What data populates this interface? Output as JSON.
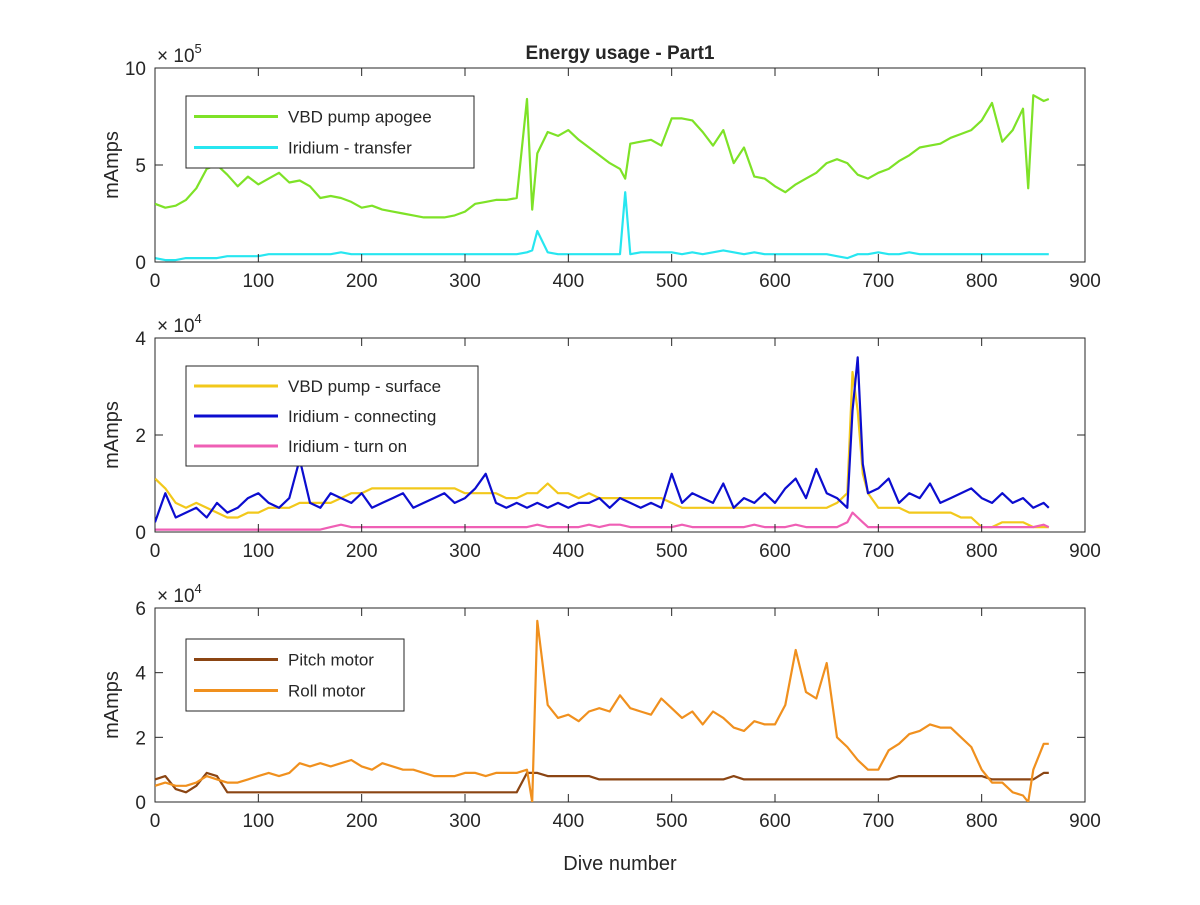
{
  "figure": {
    "title": "Energy usage - Part1",
    "xlabel": "Dive number"
  },
  "chart_data": [
    {
      "type": "line",
      "title": "Energy usage - Part1",
      "xlabel": "",
      "ylabel": "mAmps",
      "exponent_base": "× 10",
      "exponent_power": "5",
      "xlim": [
        0,
        900
      ],
      "ylim": [
        0,
        10
      ],
      "xticks": [
        "0",
        "100",
        "200",
        "300",
        "400",
        "500",
        "600",
        "700",
        "800",
        "900"
      ],
      "yticks": [
        "0",
        "5",
        "10"
      ],
      "grid": false,
      "legend_position": "top-left",
      "x": [
        0,
        10,
        20,
        30,
        40,
        50,
        60,
        70,
        80,
        90,
        100,
        110,
        120,
        130,
        140,
        150,
        160,
        170,
        180,
        190,
        200,
        210,
        220,
        230,
        240,
        250,
        260,
        270,
        280,
        290,
        300,
        310,
        320,
        330,
        340,
        350,
        360,
        365,
        370,
        380,
        390,
        400,
        410,
        420,
        430,
        440,
        450,
        455,
        460,
        470,
        480,
        490,
        500,
        510,
        520,
        530,
        540,
        550,
        560,
        570,
        580,
        590,
        600,
        610,
        620,
        630,
        640,
        650,
        660,
        670,
        680,
        690,
        700,
        710,
        720,
        730,
        740,
        750,
        760,
        770,
        780,
        790,
        800,
        810,
        820,
        830,
        840,
        845,
        850,
        860,
        865
      ],
      "series": [
        {
          "name": "VBD pump apogee",
          "color": "#7ee227",
          "values": [
            3.0,
            2.8,
            2.9,
            3.2,
            3.8,
            4.8,
            5.0,
            4.5,
            3.9,
            4.4,
            4.0,
            4.3,
            4.6,
            4.1,
            4.2,
            3.9,
            3.3,
            3.4,
            3.3,
            3.1,
            2.8,
            2.9,
            2.7,
            2.6,
            2.5,
            2.4,
            2.3,
            2.3,
            2.3,
            2.4,
            2.6,
            3.0,
            3.1,
            3.2,
            3.2,
            3.3,
            8.4,
            2.7,
            5.6,
            6.7,
            6.5,
            6.8,
            6.3,
            5.9,
            5.5,
            5.1,
            4.8,
            4.3,
            6.1,
            6.2,
            6.3,
            6.0,
            7.4,
            7.4,
            7.3,
            6.7,
            6.0,
            6.8,
            5.1,
            5.9,
            4.4,
            4.3,
            3.9,
            3.6,
            4.0,
            4.3,
            4.6,
            5.1,
            5.3,
            5.1,
            4.5,
            4.3,
            4.6,
            4.8,
            5.2,
            5.5,
            5.9,
            6.0,
            6.1,
            6.4,
            6.6,
            6.8,
            7.3,
            8.2,
            6.2,
            6.8,
            7.9,
            3.8,
            8.6,
            8.3,
            8.4
          ]
        },
        {
          "name": "Iridium - transfer",
          "color": "#27e6f0",
          "values": [
            0.2,
            0.1,
            0.1,
            0.2,
            0.2,
            0.2,
            0.2,
            0.3,
            0.3,
            0.3,
            0.3,
            0.4,
            0.4,
            0.4,
            0.4,
            0.4,
            0.4,
            0.4,
            0.5,
            0.4,
            0.4,
            0.4,
            0.4,
            0.4,
            0.4,
            0.4,
            0.4,
            0.4,
            0.4,
            0.4,
            0.4,
            0.4,
            0.4,
            0.4,
            0.4,
            0.4,
            0.5,
            0.6,
            1.6,
            0.5,
            0.4,
            0.4,
            0.4,
            0.4,
            0.4,
            0.4,
            0.4,
            3.6,
            0.4,
            0.5,
            0.5,
            0.5,
            0.5,
            0.4,
            0.5,
            0.4,
            0.5,
            0.6,
            0.5,
            0.4,
            0.5,
            0.4,
            0.4,
            0.4,
            0.4,
            0.4,
            0.4,
            0.4,
            0.3,
            0.2,
            0.4,
            0.4,
            0.5,
            0.4,
            0.4,
            0.5,
            0.4,
            0.4,
            0.4,
            0.4,
            0.4,
            0.4,
            0.4,
            0.4,
            0.4,
            0.4,
            0.4,
            0.4,
            0.4,
            0.4,
            0.4
          ]
        }
      ]
    },
    {
      "type": "line",
      "title": "",
      "xlabel": "",
      "ylabel": "mAmps",
      "exponent_base": "× 10",
      "exponent_power": "4",
      "xlim": [
        0,
        900
      ],
      "ylim": [
        0,
        4
      ],
      "xticks": [
        "0",
        "100",
        "200",
        "300",
        "400",
        "500",
        "600",
        "700",
        "800",
        "900"
      ],
      "yticks": [
        "0",
        "2",
        "4"
      ],
      "grid": false,
      "legend_position": "top-left",
      "x": [
        0,
        10,
        20,
        30,
        40,
        50,
        60,
        70,
        80,
        90,
        100,
        110,
        120,
        130,
        140,
        150,
        160,
        170,
        180,
        190,
        200,
        210,
        220,
        230,
        240,
        250,
        260,
        270,
        280,
        290,
        300,
        310,
        320,
        330,
        340,
        350,
        360,
        370,
        380,
        390,
        400,
        410,
        420,
        430,
        440,
        450,
        460,
        470,
        480,
        490,
        500,
        510,
        520,
        530,
        540,
        550,
        560,
        570,
        580,
        590,
        600,
        610,
        620,
        630,
        640,
        650,
        660,
        670,
        675,
        680,
        685,
        690,
        700,
        710,
        720,
        730,
        740,
        750,
        760,
        770,
        780,
        790,
        800,
        810,
        820,
        830,
        840,
        850,
        860,
        865
      ],
      "series": [
        {
          "name": "VBD pump - surface",
          "color": "#f2c81b",
          "values": [
            1.1,
            0.9,
            0.6,
            0.5,
            0.6,
            0.5,
            0.4,
            0.3,
            0.3,
            0.4,
            0.4,
            0.5,
            0.5,
            0.5,
            0.6,
            0.6,
            0.6,
            0.6,
            0.7,
            0.8,
            0.8,
            0.9,
            0.9,
            0.9,
            0.9,
            0.9,
            0.9,
            0.9,
            0.9,
            0.9,
            0.8,
            0.8,
            0.8,
            0.8,
            0.7,
            0.7,
            0.8,
            0.8,
            1.0,
            0.8,
            0.8,
            0.7,
            0.8,
            0.7,
            0.7,
            0.7,
            0.7,
            0.7,
            0.7,
            0.7,
            0.6,
            0.5,
            0.5,
            0.5,
            0.5,
            0.5,
            0.5,
            0.5,
            0.5,
            0.5,
            0.5,
            0.5,
            0.5,
            0.5,
            0.5,
            0.5,
            0.6,
            0.8,
            3.3,
            2.5,
            1.2,
            0.8,
            0.5,
            0.5,
            0.5,
            0.4,
            0.4,
            0.4,
            0.4,
            0.4,
            0.3,
            0.3,
            0.1,
            0.1,
            0.2,
            0.2,
            0.2,
            0.1,
            0.1,
            0.1
          ]
        },
        {
          "name": "Iridium - connecting",
          "color": "#0c0dcf",
          "values": [
            0.2,
            0.8,
            0.3,
            0.4,
            0.5,
            0.3,
            0.6,
            0.4,
            0.5,
            0.7,
            0.8,
            0.6,
            0.5,
            0.7,
            1.5,
            0.6,
            0.5,
            0.8,
            0.7,
            0.6,
            0.8,
            0.5,
            0.6,
            0.7,
            0.8,
            0.5,
            0.6,
            0.7,
            0.8,
            0.6,
            0.7,
            0.9,
            1.2,
            0.6,
            0.5,
            0.6,
            0.5,
            0.6,
            0.5,
            0.6,
            0.5,
            0.6,
            0.6,
            0.7,
            0.5,
            0.7,
            0.6,
            0.5,
            0.6,
            0.5,
            1.2,
            0.6,
            0.8,
            0.7,
            0.6,
            1.0,
            0.5,
            0.7,
            0.6,
            0.8,
            0.6,
            0.9,
            1.1,
            0.7,
            1.3,
            0.8,
            0.7,
            0.5,
            2.5,
            3.6,
            1.4,
            0.8,
            0.9,
            1.1,
            0.6,
            0.8,
            0.7,
            1.0,
            0.6,
            0.7,
            0.8,
            0.9,
            0.7,
            0.6,
            0.8,
            0.6,
            0.7,
            0.5,
            0.6,
            0.5
          ]
        },
        {
          "name": "Iridium - turn on",
          "color": "#ef5fb5",
          "values": [
            0.05,
            0.05,
            0.05,
            0.05,
            0.05,
            0.05,
            0.05,
            0.05,
            0.05,
            0.05,
            0.05,
            0.05,
            0.05,
            0.05,
            0.05,
            0.05,
            0.05,
            0.1,
            0.15,
            0.1,
            0.1,
            0.1,
            0.1,
            0.1,
            0.1,
            0.1,
            0.1,
            0.1,
            0.1,
            0.1,
            0.1,
            0.1,
            0.1,
            0.1,
            0.1,
            0.1,
            0.1,
            0.15,
            0.1,
            0.1,
            0.1,
            0.1,
            0.15,
            0.1,
            0.15,
            0.15,
            0.1,
            0.1,
            0.1,
            0.1,
            0.1,
            0.15,
            0.1,
            0.1,
            0.1,
            0.1,
            0.1,
            0.1,
            0.15,
            0.1,
            0.1,
            0.1,
            0.15,
            0.1,
            0.1,
            0.1,
            0.1,
            0.2,
            0.4,
            0.3,
            0.2,
            0.1,
            0.1,
            0.1,
            0.1,
            0.1,
            0.1,
            0.1,
            0.1,
            0.1,
            0.1,
            0.1,
            0.1,
            0.1,
            0.1,
            0.1,
            0.1,
            0.1,
            0.15,
            0.1
          ]
        }
      ]
    },
    {
      "type": "line",
      "title": "",
      "xlabel": "Dive number",
      "ylabel": "mAmps",
      "exponent_base": "× 10",
      "exponent_power": "4",
      "xlim": [
        0,
        900
      ],
      "ylim": [
        0,
        6
      ],
      "xticks": [
        "0",
        "100",
        "200",
        "300",
        "400",
        "500",
        "600",
        "700",
        "800",
        "900"
      ],
      "yticks": [
        "0",
        "2",
        "4",
        "6"
      ],
      "grid": false,
      "legend_position": "top-left",
      "x": [
        0,
        10,
        20,
        30,
        40,
        50,
        60,
        70,
        80,
        90,
        100,
        110,
        120,
        130,
        140,
        150,
        160,
        170,
        180,
        190,
        200,
        210,
        220,
        230,
        240,
        250,
        260,
        270,
        280,
        290,
        300,
        310,
        320,
        330,
        340,
        350,
        360,
        365,
        370,
        380,
        390,
        400,
        410,
        420,
        430,
        440,
        450,
        460,
        470,
        480,
        490,
        500,
        510,
        520,
        530,
        540,
        550,
        560,
        570,
        580,
        590,
        600,
        610,
        620,
        630,
        640,
        650,
        660,
        670,
        680,
        690,
        700,
        710,
        720,
        730,
        740,
        750,
        760,
        770,
        780,
        790,
        800,
        810,
        820,
        830,
        840,
        845,
        850,
        860,
        865
      ],
      "series": [
        {
          "name": "Pitch motor",
          "color": "#8b4513",
          "values": [
            0.7,
            0.8,
            0.4,
            0.3,
            0.5,
            0.9,
            0.8,
            0.3,
            0.3,
            0.3,
            0.3,
            0.3,
            0.3,
            0.3,
            0.3,
            0.3,
            0.3,
            0.3,
            0.3,
            0.3,
            0.3,
            0.3,
            0.3,
            0.3,
            0.3,
            0.3,
            0.3,
            0.3,
            0.3,
            0.3,
            0.3,
            0.3,
            0.3,
            0.3,
            0.3,
            0.3,
            0.9,
            0.9,
            0.9,
            0.8,
            0.8,
            0.8,
            0.8,
            0.8,
            0.7,
            0.7,
            0.7,
            0.7,
            0.7,
            0.7,
            0.7,
            0.7,
            0.7,
            0.7,
            0.7,
            0.7,
            0.7,
            0.8,
            0.7,
            0.7,
            0.7,
            0.7,
            0.7,
            0.7,
            0.7,
            0.7,
            0.7,
            0.7,
            0.7,
            0.7,
            0.7,
            0.7,
            0.7,
            0.8,
            0.8,
            0.8,
            0.8,
            0.8,
            0.8,
            0.8,
            0.8,
            0.8,
            0.7,
            0.7,
            0.7,
            0.7,
            0.7,
            0.7,
            0.9,
            0.9
          ]
        },
        {
          "name": "Roll motor",
          "color": "#f0901e",
          "values": [
            0.5,
            0.6,
            0.5,
            0.5,
            0.6,
            0.8,
            0.7,
            0.6,
            0.6,
            0.7,
            0.8,
            0.9,
            0.8,
            0.9,
            1.2,
            1.1,
            1.2,
            1.1,
            1.2,
            1.3,
            1.1,
            1.0,
            1.2,
            1.1,
            1.0,
            1.0,
            0.9,
            0.8,
            0.8,
            0.8,
            0.9,
            0.9,
            0.8,
            0.9,
            0.9,
            0.9,
            1.0,
            0.0,
            5.6,
            3.0,
            2.6,
            2.7,
            2.5,
            2.8,
            2.9,
            2.8,
            3.3,
            2.9,
            2.8,
            2.7,
            3.2,
            2.9,
            2.6,
            2.8,
            2.4,
            2.8,
            2.6,
            2.3,
            2.2,
            2.5,
            2.4,
            2.4,
            3.0,
            4.7,
            3.4,
            3.2,
            4.3,
            2.0,
            1.7,
            1.3,
            1.0,
            1.0,
            1.6,
            1.8,
            2.1,
            2.2,
            2.4,
            2.3,
            2.3,
            2.0,
            1.7,
            1.0,
            0.6,
            0.6,
            0.3,
            0.2,
            0.0,
            1.0,
            1.8,
            1.8
          ]
        }
      ]
    }
  ]
}
